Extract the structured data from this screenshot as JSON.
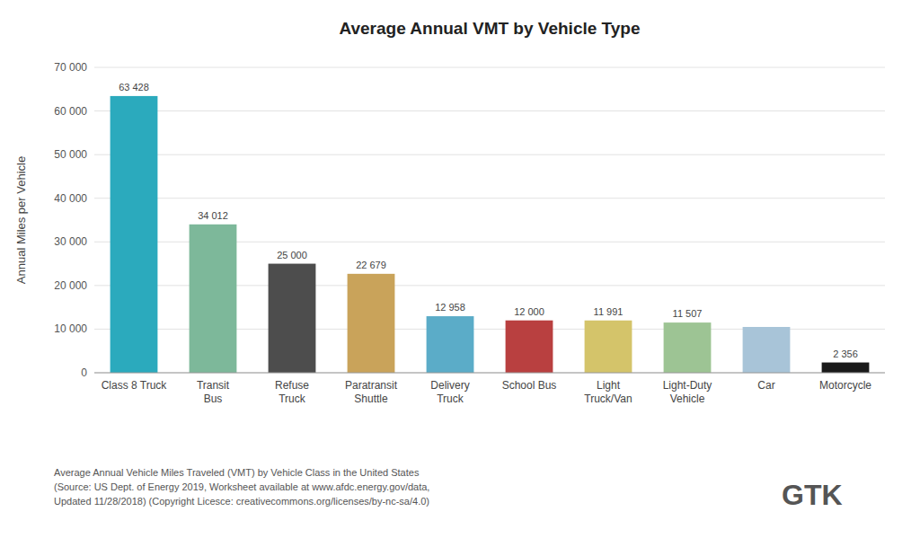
{
  "chart_data": {
    "type": "bar",
    "title": "Average Annual VMT by Vehicle Type",
    "ylabel": "Annual Miles per Vehicle",
    "categories": [
      "Class 8 Truck",
      "Transit\nBus",
      "Refuse\nTruck",
      "Paratransit\nShuttle",
      "Delivery\nTruck",
      "School Bus",
      "Light\nTruck/Van",
      "Light-Duty\nVehicle",
      "Car",
      "Motorcycle"
    ],
    "values": [
      63428,
      34012,
      25000,
      22679,
      12958,
      12000,
      11991,
      11507,
      10500,
      2356
    ],
    "value_labels": [
      "63 428",
      "34 012",
      "25 000",
      "22 679",
      "12 958",
      "12 000",
      "11 991",
      "11 507",
      null,
      "2 356"
    ],
    "data_labels": true,
    "colors": [
      "#2BAABD",
      "#7DB89A",
      "#4D4D4D",
      "#C9A35A",
      "#5BACC8",
      "#B94040",
      "#D4C46A",
      "#9DC494",
      "#A8C4D8",
      "#1A1A1A"
    ],
    "ylim": [
      0,
      70000
    ],
    "yticks": [
      0,
      {
        "value": 10000,
        "label": "10 000"
      },
      {
        "value": 20000,
        "label": "20 000"
      },
      {
        "value": 30000,
        "label": "30 000"
      },
      {
        "value": 40000,
        "label": "40 000"
      },
      {
        "value": 50000,
        "label": "50 000"
      },
      {
        "value": 60000,
        "label": "60 000"
      },
      {
        "value": 70000,
        "label": "70 000"
      }
    ],
    "grid": true,
    "annotations": [
      "Average Annual Vehicle Miles Traveled (VMT) by Vehicle Class in the United States",
      "(Source: US Dept. of Energy 2019, Worksheet available at www.afdc.energy.gov/data,",
      "Updated 11/28/2018) (Copyright Licesce: creativecommons.org/licenses/by-nc-sa/4.0)",
      "GTK"
    ]
  }
}
